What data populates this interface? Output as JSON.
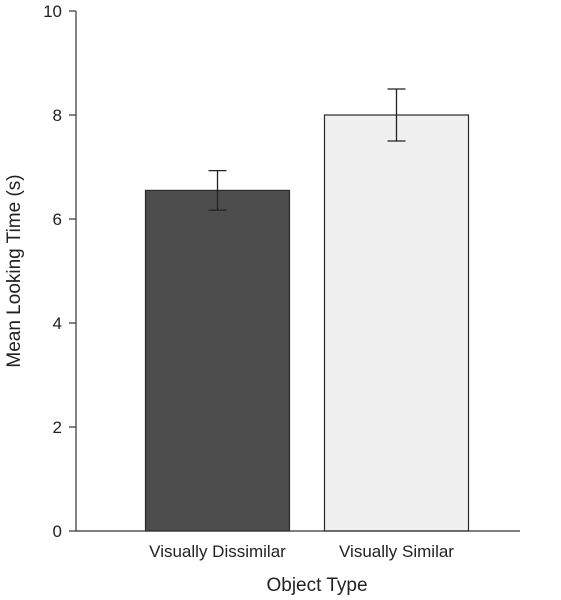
{
  "chart_data": {
    "type": "bar",
    "title": "",
    "xlabel": "Object Type",
    "ylabel": "Mean Looking Time (s)",
    "categories": [
      "Visually Dissimilar",
      "Visually Similar"
    ],
    "values": [
      6.55,
      8.0
    ],
    "error": [
      0.38,
      0.5
    ],
    "ylim": [
      0,
      10
    ],
    "yticks": [
      0,
      2,
      4,
      6,
      8,
      10
    ],
    "ytick_labels": [
      "0",
      "2",
      "4",
      "6",
      "8",
      "10"
    ],
    "bar_colors": [
      "#4d4d4d",
      "#f0f0f0"
    ],
    "grid": false,
    "legend": "none"
  }
}
